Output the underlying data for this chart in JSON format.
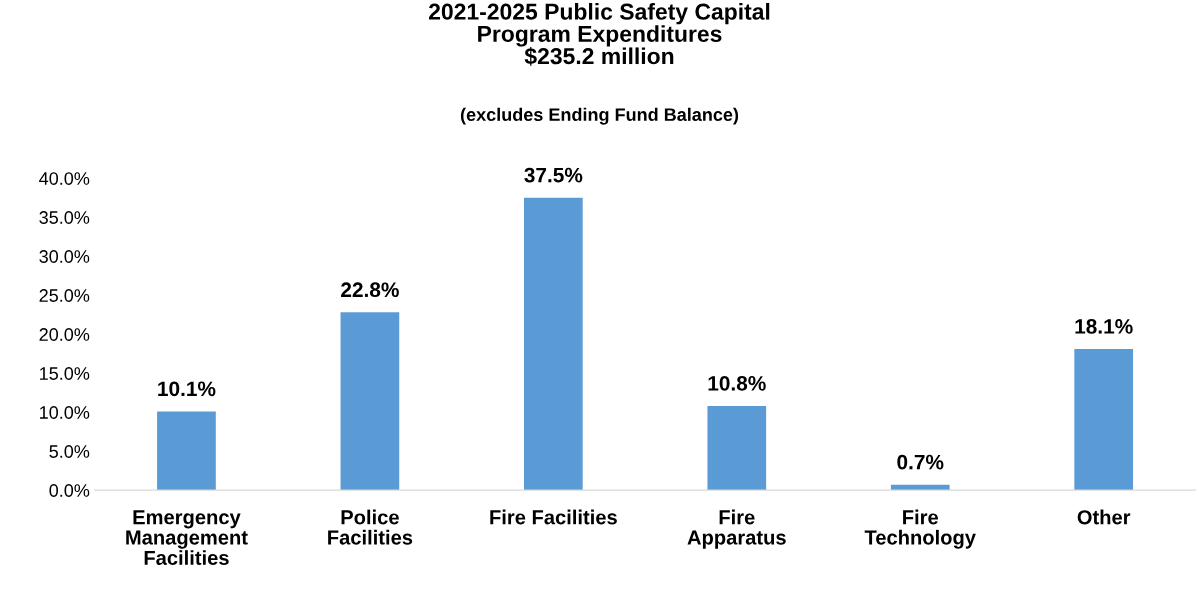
{
  "chart_data": {
    "type": "bar",
    "title": "2021-2025 Public Safety Capital\nProgram Expenditures\n$235.2 million",
    "subtitle": "(excludes Ending Fund Balance)",
    "categories": [
      "Emergency\nManagement\nFacilities",
      "Police\nFacilities",
      "Fire Facilities",
      "Fire\nApparatus",
      "Fire\nTechnology",
      "Other"
    ],
    "values": [
      10.1,
      22.8,
      37.5,
      10.8,
      0.7,
      18.1
    ],
    "value_labels": [
      "10.1%",
      "22.8%",
      "37.5%",
      "10.8%",
      "0.7%",
      "18.1%"
    ],
    "color": "#5b9bd5",
    "ylim": [
      0,
      40
    ],
    "yticks": [
      {
        "value": 0,
        "label": "0.0%"
      },
      {
        "value": 5,
        "label": "5.0%"
      },
      {
        "value": 10,
        "label": "10.0%"
      },
      {
        "value": 15,
        "label": "15.0%"
      },
      {
        "value": 20,
        "label": "20.0%"
      },
      {
        "value": 25,
        "label": "25.0%"
      },
      {
        "value": 30,
        "label": "30.0%"
      },
      {
        "value": 35,
        "label": "35.0%"
      },
      {
        "value": 40,
        "label": "40.0%"
      }
    ],
    "grid": false,
    "legend": false
  }
}
